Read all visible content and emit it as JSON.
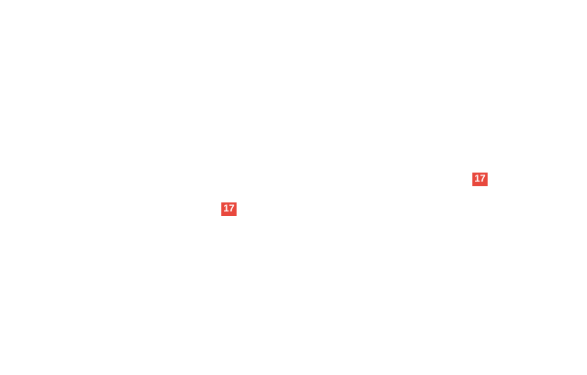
{
  "page": {
    "background_color": "#ffffff",
    "accent_color": "#e8483d",
    "marker_text_color": "#ffffff"
  },
  "markers": [
    {
      "label": "17"
    },
    {
      "label": "17"
    }
  ]
}
